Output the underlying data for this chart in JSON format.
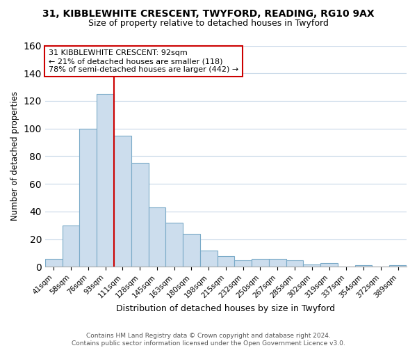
{
  "title": "31, KIBBLEWHITE CRESCENT, TWYFORD, READING, RG10 9AX",
  "subtitle": "Size of property relative to detached houses in Twyford",
  "xlabel": "Distribution of detached houses by size in Twyford",
  "ylabel": "Number of detached properties",
  "bar_labels": [
    "41sqm",
    "58sqm",
    "76sqm",
    "93sqm",
    "111sqm",
    "128sqm",
    "145sqm",
    "163sqm",
    "180sqm",
    "198sqm",
    "215sqm",
    "232sqm",
    "250sqm",
    "267sqm",
    "285sqm",
    "302sqm",
    "319sqm",
    "337sqm",
    "354sqm",
    "372sqm",
    "389sqm"
  ],
  "bar_heights": [
    6,
    30,
    100,
    125,
    95,
    75,
    43,
    32,
    24,
    12,
    8,
    5,
    6,
    6,
    5,
    2,
    3,
    0,
    1,
    0,
    1
  ],
  "bar_color": "#ccdded",
  "bar_edgecolor": "#7aaac8",
  "vline_x_index": 3,
  "vline_color": "#cc0000",
  "ylim": [
    0,
    160
  ],
  "yticks": [
    0,
    20,
    40,
    60,
    80,
    100,
    120,
    140,
    160
  ],
  "annotation_title": "31 KIBBLEWHITE CRESCENT: 92sqm",
  "annotation_line1": "← 21% of detached houses are smaller (118)",
  "annotation_line2": "78% of semi-detached houses are larger (442) →",
  "annotation_box_color": "#ffffff",
  "annotation_box_edgecolor": "#cc0000",
  "footer_line1": "Contains HM Land Registry data © Crown copyright and database right 2024.",
  "footer_line2": "Contains public sector information licensed under the Open Government Licence v3.0.",
  "background_color": "#ffffff",
  "grid_color": "#c8d8e8"
}
